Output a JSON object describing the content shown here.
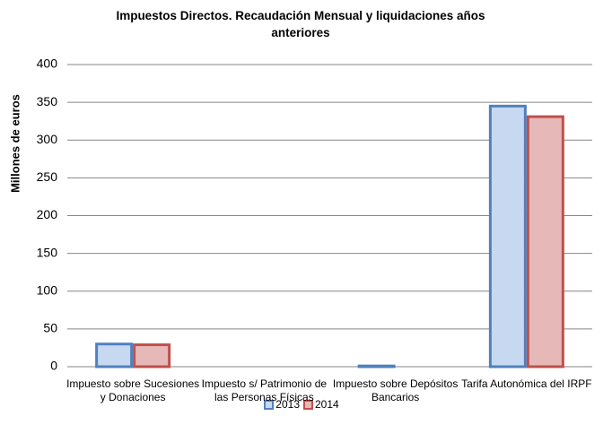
{
  "chart_data": {
    "type": "bar",
    "title": "Impuestos Directos. Recaudación Mensual y liquidaciones años anteriores",
    "y_label": "Millones de euros",
    "categories": [
      "Impuesto sobre Sucesiones y Donaciones",
      "Impuesto s/ Patrimonio de las Personas Físicas",
      "Impuesto sobre Depósitos Bancarios",
      "Tarifa Autonómica del IRPF"
    ],
    "series": [
      {
        "name": "2013",
        "color": "#4f81bd",
        "fill": "#c6d9f1",
        "values": [
          30,
          0,
          1,
          345
        ]
      },
      {
        "name": "2014",
        "color": "#c0504d",
        "fill": "#e6b9b8",
        "values": [
          29,
          0,
          0,
          331
        ]
      }
    ],
    "ylim": [
      0,
      400
    ],
    "yticks": [
      0,
      50,
      100,
      150,
      200,
      250,
      300,
      350,
      400
    ],
    "grid": true,
    "legend": "bottom"
  }
}
